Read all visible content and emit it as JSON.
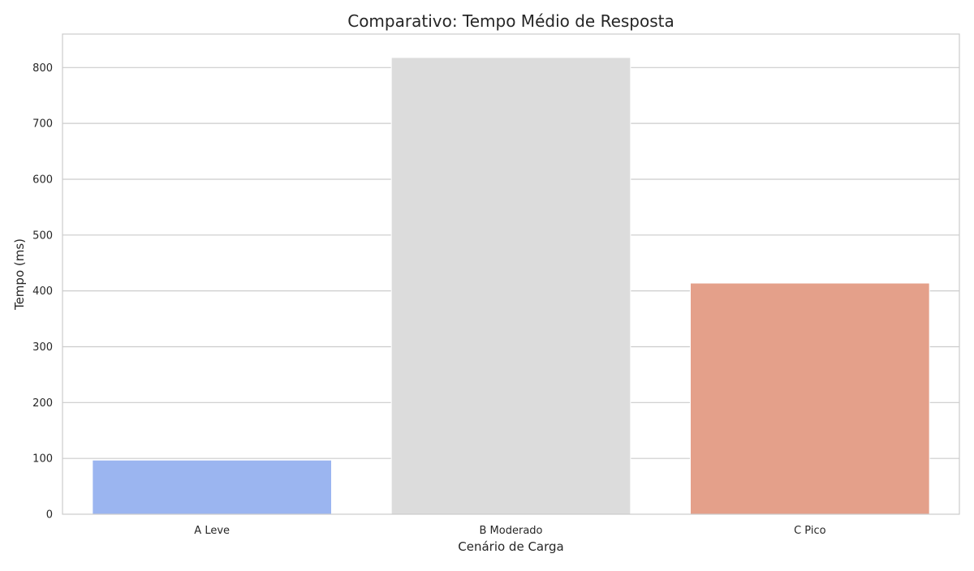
{
  "chart_data": {
    "type": "bar",
    "title": "Comparativo: Tempo Médio de Resposta",
    "xlabel": "Cenário de Carga",
    "ylabel": "Tempo (ms)",
    "categories": [
      "A Leve",
      "B Moderado",
      "C Pico"
    ],
    "values": [
      97,
      818,
      414
    ],
    "colors": [
      "#9bb5f0",
      "#dcdcdc",
      "#e4a08a"
    ],
    "ylim": [
      0,
      860
    ],
    "yticks": [
      0,
      100,
      200,
      300,
      400,
      500,
      600,
      700,
      800
    ],
    "grid": true,
    "legend": "none"
  }
}
